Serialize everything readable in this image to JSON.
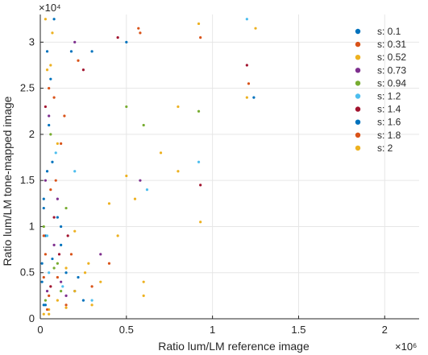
{
  "chart_data": {
    "type": "scatter",
    "xlabel": "Ratio lum/LM reference image",
    "ylabel": "Ratio lum/LM tone-mapped image",
    "x_exponent": "×10⁶",
    "y_exponent": "×10⁴",
    "x_scale": 1000000,
    "y_scale": 10000,
    "xlim": [
      0,
      2.2
    ],
    "ylim": [
      0,
      3.3
    ],
    "xticks": [
      "0",
      "0.5",
      "1",
      "1.5",
      "2"
    ],
    "xtick_values": [
      0,
      0.5,
      1,
      1.5,
      2
    ],
    "yticks": [
      "0",
      "0.5",
      "1",
      "1.5",
      "2",
      "2.5",
      "3"
    ],
    "ytick_values": [
      0,
      0.5,
      1,
      1.5,
      2,
      2.5,
      3
    ],
    "grid": true,
    "legend_position": "top-right",
    "series": [
      {
        "name": "s: 0.1",
        "color": "#0072BD",
        "points": [
          [
            0.02,
            1.2
          ],
          [
            0.03,
            0.9
          ],
          [
            0.05,
            2.1
          ],
          [
            0.08,
            3.25
          ],
          [
            0.04,
            1.6
          ],
          [
            0.01,
            0.4
          ],
          [
            0.12,
            0.8
          ],
          [
            0.15,
            0.5
          ],
          [
            0.06,
            2.6
          ],
          [
            0.2,
            0.3
          ],
          [
            0.1,
            1.1
          ],
          [
            0.02,
            0.15
          ],
          [
            0.07,
            0.65
          ],
          [
            0.18,
            2.9
          ],
          [
            0.25,
            0.2
          ]
        ]
      },
      {
        "name": "s: 0.31",
        "color": "#D95319",
        "points": [
          [
            0.03,
            0.7
          ],
          [
            0.06,
            1.4
          ],
          [
            0.1,
            0.45
          ],
          [
            0.22,
            2.8
          ],
          [
            0.3,
            0.35
          ],
          [
            0.05,
            0.25
          ],
          [
            0.12,
            1.9
          ],
          [
            0.08,
            2.4
          ],
          [
            0.4,
            0.6
          ],
          [
            0.02,
            0.9
          ],
          [
            0.58,
            3.1
          ],
          [
            0.15,
            0.15
          ]
        ]
      },
      {
        "name": "s: 0.52",
        "color": "#EDB120",
        "points": [
          [
            0.05,
            0.1
          ],
          [
            0.1,
            0.2
          ],
          [
            0.2,
            0.3
          ],
          [
            0.3,
            0.15
          ],
          [
            0.45,
            0.9
          ],
          [
            0.55,
            1.3
          ],
          [
            0.7,
            1.8
          ],
          [
            0.8,
            2.3
          ],
          [
            0.92,
            3.2
          ],
          [
            1.2,
            2.4
          ],
          [
            1.25,
            3.15
          ],
          [
            0.07,
            3.1
          ],
          [
            0.04,
            2.7
          ],
          [
            0.15,
            0.55
          ],
          [
            0.6,
            0.25
          ],
          [
            0.35,
            0.4
          ],
          [
            0.26,
            0.5
          ],
          [
            0.02,
            0.05
          ]
        ]
      },
      {
        "name": "s: 0.73",
        "color": "#7E2F8E",
        "points": [
          [
            0.03,
            1.5
          ],
          [
            0.08,
            0.8
          ],
          [
            0.12,
            0.4
          ],
          [
            0.2,
            3.0
          ],
          [
            0.35,
            0.7
          ],
          [
            0.05,
            2.2
          ],
          [
            0.1,
            1.3
          ],
          [
            0.04,
            0.3
          ],
          [
            0.58,
            1.5
          ],
          [
            0.15,
            0.25
          ]
        ]
      },
      {
        "name": "s: 0.94",
        "color": "#77AC30",
        "points": [
          [
            0.02,
            1.0
          ],
          [
            0.06,
            2.0
          ],
          [
            0.1,
            0.6
          ],
          [
            0.15,
            1.2
          ],
          [
            0.5,
            2.3
          ],
          [
            0.6,
            2.1
          ],
          [
            0.92,
            2.25
          ],
          [
            0.12,
            0.3
          ],
          [
            0.08,
            0.55
          ],
          [
            0.03,
            0.2
          ]
        ]
      },
      {
        "name": "s: 1.2",
        "color": "#4DBEEE",
        "points": [
          [
            0.04,
            0.9
          ],
          [
            0.09,
            1.8
          ],
          [
            0.13,
            0.35
          ],
          [
            0.2,
            1.6
          ],
          [
            0.62,
            1.4
          ],
          [
            0.92,
            1.7
          ],
          [
            1.2,
            3.25
          ],
          [
            0.05,
            0.5
          ],
          [
            0.3,
            0.2
          ]
        ]
      },
      {
        "name": "s: 1.4",
        "color": "#A2142F",
        "points": [
          [
            0.03,
            2.3
          ],
          [
            0.08,
            1.1
          ],
          [
            0.11,
            0.7
          ],
          [
            0.25,
            2.7
          ],
          [
            0.45,
            3.05
          ],
          [
            0.93,
            1.45
          ],
          [
            1.2,
            2.75
          ],
          [
            0.06,
            0.35
          ],
          [
            0.16,
            0.9
          ]
        ]
      },
      {
        "name": "s: 1.6",
        "color": "#0072BD",
        "points": [
          [
            0.01,
            0.6
          ],
          [
            0.02,
            1.3
          ],
          [
            0.04,
            2.9
          ],
          [
            0.07,
            1.7
          ],
          [
            0.3,
            2.9
          ],
          [
            0.5,
            3.0
          ],
          [
            1.24,
            2.4
          ],
          [
            0.03,
            0.15
          ],
          [
            0.12,
            1.0
          ],
          [
            0.22,
            0.45
          ]
        ]
      },
      {
        "name": "s: 1.8",
        "color": "#D95319",
        "points": [
          [
            0.02,
            0.45
          ],
          [
            0.05,
            2.5
          ],
          [
            0.09,
            1.5
          ],
          [
            0.14,
            2.2
          ],
          [
            0.57,
            3.15
          ],
          [
            0.93,
            3.05
          ],
          [
            1.21,
            2.55
          ],
          [
            0.04,
            0.1
          ],
          [
            0.18,
            0.7
          ]
        ]
      },
      {
        "name": "s: 2",
        "color": "#EDB120",
        "points": [
          [
            0.03,
            3.25
          ],
          [
            0.06,
            2.75
          ],
          [
            0.1,
            1.9
          ],
          [
            0.2,
            0.95
          ],
          [
            0.28,
            0.6
          ],
          [
            0.4,
            1.25
          ],
          [
            0.5,
            1.55
          ],
          [
            0.93,
            1.05
          ],
          [
            0.05,
            0.05
          ],
          [
            0.15,
            0.12
          ],
          [
            0.6,
            0.4
          ],
          [
            0.8,
            1.6
          ]
        ]
      }
    ]
  }
}
